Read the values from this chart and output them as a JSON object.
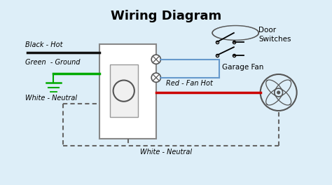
{
  "title": "Wiring Diagram",
  "title_fontsize": 13,
  "bg_color": "#ddeef8",
  "border_color": "#1a44bb",
  "labels": {
    "black_hot": "Black - Hot",
    "green_ground": "Green  - Ground",
    "white_neutral_left": "White - Neutral",
    "white_neutral_right": "White - Neutral",
    "red_fan_hot": "Red - Fan Hot",
    "garage_fan": "Garage Fan",
    "door_switches": "Door\nSwitches"
  },
  "wire_colors": {
    "black": "#111111",
    "green": "#00aa00",
    "white_dashed": "#666666",
    "red": "#cc0000",
    "blue": "#6699cc"
  },
  "xlim": [
    0,
    10
  ],
  "ylim": [
    0,
    5.5
  ]
}
